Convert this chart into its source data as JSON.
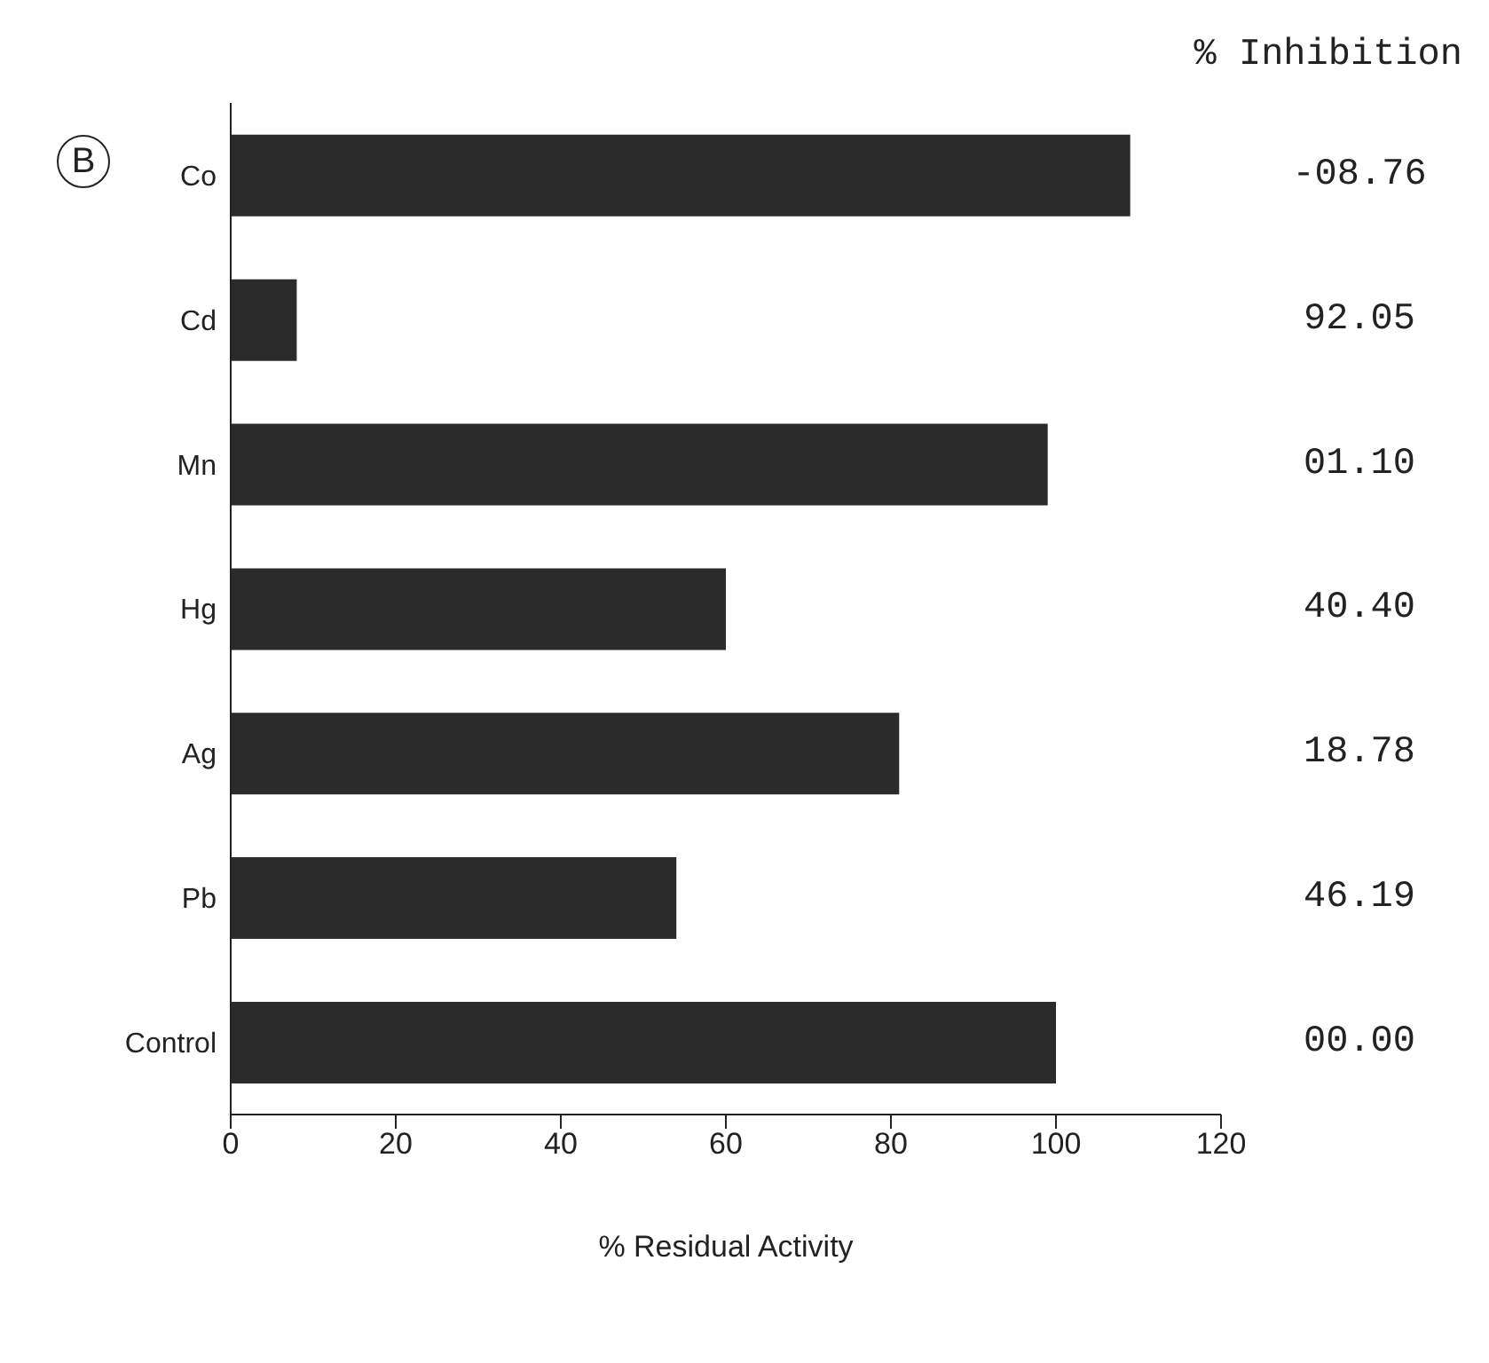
{
  "chart_data": {
    "type": "bar",
    "orientation": "horizontal",
    "xlabel": "% Residual Activity",
    "categories": [
      "Co",
      "Cd",
      "Mn",
      "Hg",
      "Ag",
      "Pb",
      "Control"
    ],
    "values": [
      109,
      8,
      99,
      60,
      81,
      54,
      100
    ],
    "color": "#2b2b2b",
    "legend_title": "% Inhibition",
    "annotations": [
      "B",
      "-08.76",
      "92.05",
      "01.10",
      "40.40",
      "18.78",
      "46.19",
      "00.00"
    ],
    "xlim": [
      0,
      120
    ],
    "xticks": [
      0,
      20,
      40,
      60,
      80,
      100,
      120
    ],
    "grid": false,
    "legend": false
  }
}
